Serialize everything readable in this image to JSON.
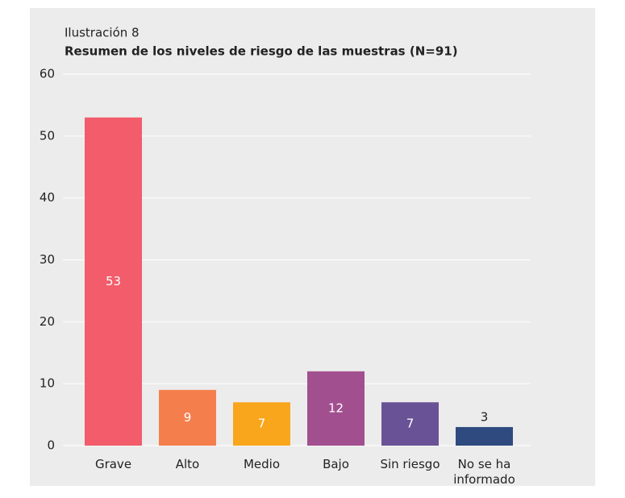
{
  "chart_data": {
    "type": "bar",
    "title": "Ilustración 8",
    "subtitle": "Resumen de los niveles de riesgo de las muestras (N=91)",
    "categories": [
      "Grave",
      "Alto",
      "Medio",
      "Bajo",
      "Sin riesgo",
      "No se ha informado"
    ],
    "values": [
      53,
      9,
      7,
      12,
      7,
      3
    ],
    "colors": [
      "#f25c6b",
      "#f47f4d",
      "#f9a61d",
      "#a24f90",
      "#6a5296",
      "#2e4a7e"
    ],
    "ylim": [
      0,
      60
    ],
    "yticks": [
      0,
      10,
      20,
      30,
      40,
      50,
      60
    ],
    "grid": true
  }
}
